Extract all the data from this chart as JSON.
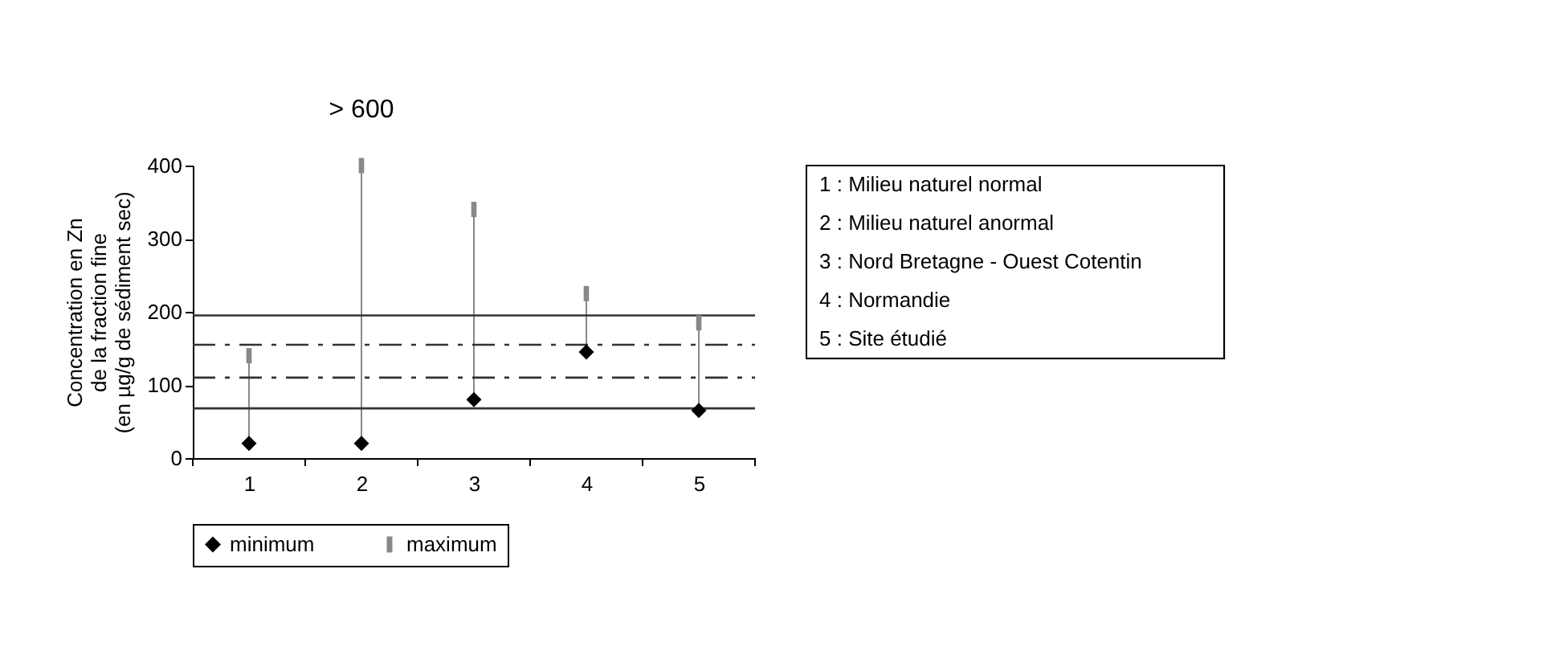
{
  "chart_data": {
    "type": "scatter",
    "ylabel": "Concentration en Zn\nde la fraction fine\n(en µg/g de sédiment sec)",
    "categories": [
      "1",
      "2",
      "3",
      "4",
      "5"
    ],
    "series": [
      {
        "name": "minimum",
        "color": "#000000",
        "marker": "diamond",
        "values": [
          20,
          20,
          80,
          145,
          65
        ]
      },
      {
        "name": "maximum",
        "color": "#888888",
        "marker": "square",
        "values": [
          140,
          400,
          340,
          225,
          185
        ]
      }
    ],
    "ylim": [
      0,
      400
    ],
    "yticks": [
      0,
      100,
      200,
      300,
      400
    ],
    "ref_lines": [
      {
        "axis": "y",
        "value": 195,
        "line_style": "solid",
        "color": "#333333"
      },
      {
        "axis": "y",
        "value": 155,
        "line_style": "dashed",
        "color": "#333333"
      },
      {
        "axis": "y",
        "value": 110,
        "line_style": "dashed",
        "color": "#333333"
      },
      {
        "axis": "y",
        "value": 68,
        "line_style": "solid",
        "color": "#333333"
      }
    ],
    "annotations": [
      {
        "text": "> 600",
        "x": "2",
        "y": 400
      },
      "1 : Milieu naturel normal",
      "2 : Milieu naturel anormal",
      "3 : Nord Bretagne - Ouest Cotentin",
      "4 : Normandie",
      "5 : Site étudié"
    ],
    "legend": "bottom"
  }
}
